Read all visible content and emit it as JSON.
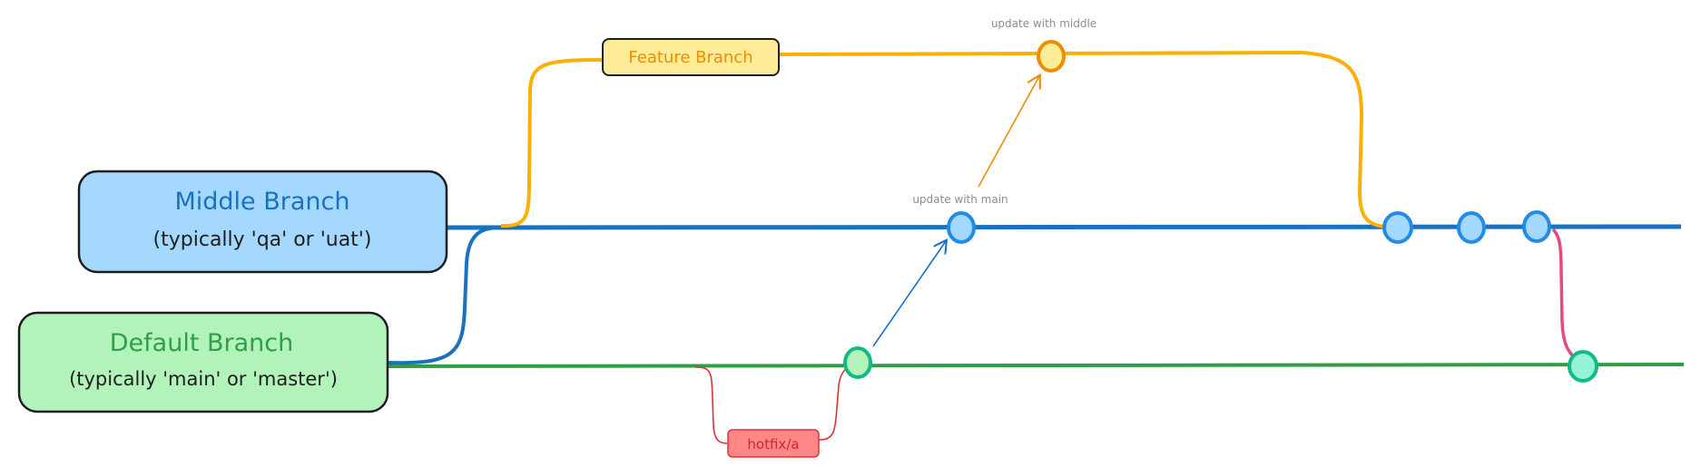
{
  "boxes": {
    "middle": {
      "title": "Middle Branch",
      "subtitle": "(typically 'qa' or 'uat')",
      "fill": "#a5d8ff",
      "text_color": "#1971c2"
    },
    "default": {
      "title": "Default Branch",
      "subtitle": "(typically 'main' or 'master')",
      "fill": "#b2f2bb",
      "text_color": "#2f9e44"
    },
    "feature": {
      "label": "Feature Branch",
      "fill": "#ffec99",
      "text_color": "#f08c00"
    },
    "hotfix": {
      "label": "hotfix/a",
      "fill": "#ff8787",
      "text_color": "#e03131"
    }
  },
  "annotations": {
    "update_with_middle": "update with middle",
    "update_with_main": "update with main"
  },
  "colors": {
    "middle_line": "#1971c2",
    "default_line": "#2f9e44",
    "feature_line": "#fab005",
    "hotfix_line": "#e03131",
    "merge_line": "#e64980",
    "annotation_text": "#868e96"
  }
}
